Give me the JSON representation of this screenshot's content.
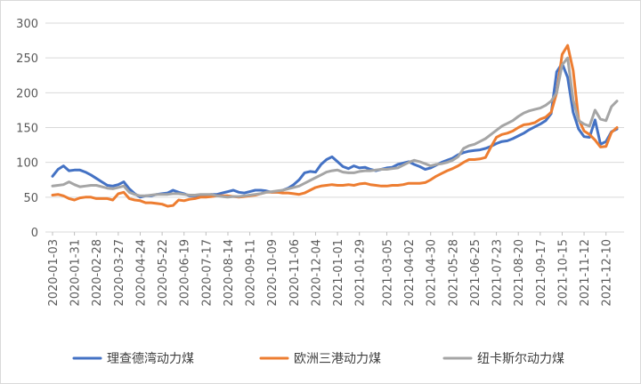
{
  "chart_data": {
    "type": "line",
    "title": "",
    "xlabel": "",
    "ylabel": "",
    "ylim": [
      0,
      300
    ],
    "yticks": [
      0,
      50,
      100,
      150,
      200,
      250,
      300
    ],
    "grid": "horizontal",
    "legend_position": "bottom",
    "x_dates": [
      "2020-01-03",
      "2020-01-10",
      "2020-01-17",
      "2020-01-24",
      "2020-01-31",
      "2020-02-07",
      "2020-02-14",
      "2020-02-21",
      "2020-02-28",
      "2020-03-06",
      "2020-03-13",
      "2020-03-20",
      "2020-03-27",
      "2020-04-03",
      "2020-04-10",
      "2020-04-17",
      "2020-04-24",
      "2020-05-01",
      "2020-05-08",
      "2020-05-15",
      "2020-05-22",
      "2020-05-29",
      "2020-06-05",
      "2020-06-12",
      "2020-06-19",
      "2020-06-26",
      "2020-07-03",
      "2020-07-10",
      "2020-07-17",
      "2020-07-24",
      "2020-07-31",
      "2020-08-07",
      "2020-08-14",
      "2020-08-21",
      "2020-08-28",
      "2020-09-04",
      "2020-09-11",
      "2020-09-18",
      "2020-09-25",
      "2020-10-02",
      "2020-10-09",
      "2020-10-16",
      "2020-10-23",
      "2020-10-30",
      "2020-11-06",
      "2020-11-13",
      "2020-11-20",
      "2020-11-27",
      "2020-12-04",
      "2020-12-11",
      "2020-12-18",
      "2020-12-25",
      "2021-01-01",
      "2021-01-08",
      "2021-01-15",
      "2021-01-22",
      "2021-01-29",
      "2021-02-05",
      "2021-02-12",
      "2021-02-19",
      "2021-02-26",
      "2021-03-05",
      "2021-03-12",
      "2021-03-19",
      "2021-03-26",
      "2021-04-02",
      "2021-04-09",
      "2021-04-16",
      "2021-04-23",
      "2021-04-30",
      "2021-05-07",
      "2021-05-14",
      "2021-05-21",
      "2021-05-28",
      "2021-06-04",
      "2021-06-11",
      "2021-06-18",
      "2021-06-25",
      "2021-07-02",
      "2021-07-09",
      "2021-07-16",
      "2021-07-23",
      "2021-07-30",
      "2021-08-06",
      "2021-08-13",
      "2021-08-20",
      "2021-08-27",
      "2021-09-03",
      "2021-09-10",
      "2021-09-17",
      "2021-09-24",
      "2021-10-01",
      "2021-10-08",
      "2021-10-15",
      "2021-10-22",
      "2021-10-29",
      "2021-11-05",
      "2021-11-12",
      "2021-11-19",
      "2021-11-26",
      "2021-12-03",
      "2021-12-10",
      "2021-12-17",
      "2021-12-24"
    ],
    "x_tick_labels": [
      "2020-01-03",
      "2020-01-31",
      "2020-02-28",
      "2020-03-27",
      "2020-04-24",
      "2020-05-22",
      "2020-06-19",
      "2020-07-17",
      "2020-08-14",
      "2020-09-11",
      "2020-10-09",
      "2020-11-06",
      "2020-12-04",
      "2021-01-01",
      "2021-01-29",
      "2021-03-05",
      "2021-04-02",
      "2021-04-30",
      "2021-05-28",
      "2021-06-25",
      "2021-07-23",
      "2021-08-20",
      "2021-09-17",
      "2021-10-15",
      "2021-11-12",
      "2021-12-10"
    ],
    "series": [
      {
        "name": "理查德湾动力煤",
        "color": "#4472C4",
        "values": [
          80,
          90,
          95,
          88,
          89,
          89,
          86,
          82,
          77,
          72,
          67,
          66,
          68,
          72,
          62,
          55,
          50,
          52,
          52,
          54,
          55,
          56,
          60,
          57,
          55,
          52,
          52,
          53,
          53,
          54,
          54,
          56,
          58,
          60,
          57,
          56,
          58,
          60,
          60,
          59,
          57,
          57,
          60,
          63,
          68,
          75,
          85,
          87,
          86,
          97,
          104,
          108,
          101,
          94,
          91,
          95,
          92,
          93,
          90,
          88,
          90,
          92,
          93,
          97,
          99,
          101,
          97,
          94,
          90,
          92,
          96,
          100,
          103,
          106,
          111,
          114,
          116,
          117,
          118,
          120,
          123,
          127,
          130,
          131,
          134,
          138,
          142,
          147,
          151,
          155,
          160,
          170,
          230,
          242,
          222,
          172,
          148,
          137,
          136,
          161,
          126,
          130,
          144,
          148
        ]
      },
      {
        "name": "欧洲三港动力煤",
        "color": "#ED7D31",
        "values": [
          53,
          54,
          52,
          48,
          46,
          49,
          50,
          50,
          48,
          48,
          48,
          46,
          55,
          57,
          48,
          46,
          45,
          42,
          42,
          41,
          40,
          37,
          38,
          46,
          45,
          47,
          48,
          50,
          50,
          51,
          52,
          52,
          52,
          51,
          50,
          51,
          52,
          53,
          55,
          57,
          57,
          57,
          56,
          56,
          55,
          54,
          56,
          60,
          64,
          66,
          67,
          68,
          67,
          67,
          68,
          67,
          69,
          70,
          68,
          67,
          66,
          66,
          67,
          67,
          68,
          70,
          70,
          70,
          71,
          75,
          80,
          84,
          88,
          91,
          95,
          100,
          104,
          104,
          105,
          107,
          122,
          136,
          140,
          142,
          145,
          150,
          154,
          155,
          157,
          162,
          165,
          172,
          200,
          255,
          268,
          232,
          162,
          145,
          140,
          132,
          122,
          123,
          143,
          150
        ]
      },
      {
        "name": "纽卡斯尔动力煤",
        "color": "#A5A5A5",
        "values": [
          66,
          67,
          68,
          72,
          68,
          65,
          66,
          67,
          67,
          65,
          63,
          62,
          64,
          66,
          57,
          54,
          52,
          52,
          53,
          54,
          54,
          54,
          55,
          55,
          54,
          53,
          53,
          54,
          54,
          54,
          52,
          51,
          50,
          51,
          51,
          52,
          53,
          54,
          55,
          57,
          58,
          59,
          60,
          62,
          64,
          66,
          70,
          74,
          78,
          82,
          86,
          88,
          89,
          86,
          85,
          85,
          87,
          88,
          88,
          89,
          90,
          90,
          91,
          92,
          96,
          100,
          103,
          101,
          98,
          95,
          97,
          98,
          100,
          103,
          108,
          120,
          124,
          126,
          130,
          134,
          140,
          146,
          152,
          156,
          160,
          166,
          171,
          174,
          176,
          178,
          182,
          188,
          200,
          240,
          250,
          190,
          160,
          155,
          152,
          175,
          162,
          160,
          180,
          188
        ]
      }
    ]
  }
}
